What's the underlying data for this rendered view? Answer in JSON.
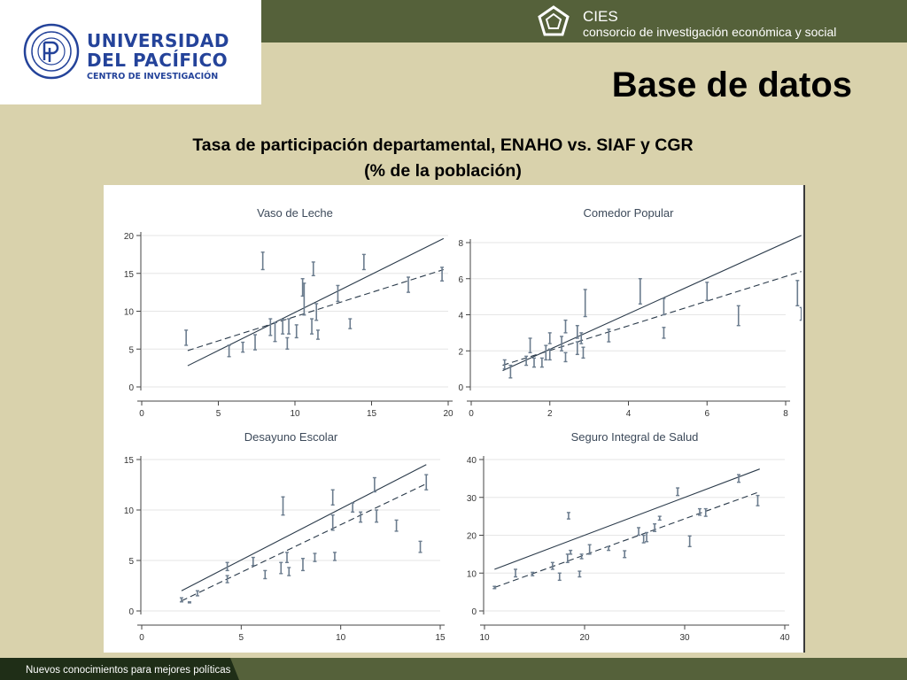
{
  "logo": {
    "line1": "UNIVERSIDAD",
    "line2": "DEL PACÍFICO",
    "line3": "CENTRO DE INVESTIGACIÓN",
    "color": "#24439a"
  },
  "header": {
    "cies_title": "CIES",
    "cies_subtitle": "consorcio de investigación económica y social",
    "bar_color": "#55613a"
  },
  "slide": {
    "title": "Base de datos",
    "subtitle_line1": "Tasa de participación departamental, ENAHO vs. SIAF y CGR",
    "subtitle_line2": "(% de la población)"
  },
  "footer": {
    "text": "Nuevos conocimientos para mejores políticas"
  },
  "chart_data": [
    {
      "type": "scatter",
      "title": "Vaso de Leche",
      "xlim": [
        0,
        20
      ],
      "ylim": [
        0,
        20
      ],
      "xticks": [
        0,
        5,
        10,
        15,
        20
      ],
      "yticks": [
        0,
        5,
        10,
        15,
        20
      ],
      "solid_line": [
        [
          3,
          2.8
        ],
        [
          19.7,
          19.6
        ]
      ],
      "dashed_line": [
        [
          3,
          4.8
        ],
        [
          19.7,
          15.5
        ]
      ],
      "segments": [
        {
          "x": 2.9,
          "y1": 5.5,
          "y2": 7.5
        },
        {
          "x": 5.7,
          "y1": 4.0,
          "y2": 5.5
        },
        {
          "x": 6.6,
          "y1": 4.6,
          "y2": 5.9
        },
        {
          "x": 7.4,
          "y1": 4.9,
          "y2": 6.9
        },
        {
          "x": 7.9,
          "y1": 15.5,
          "y2": 17.8
        },
        {
          "x": 8.4,
          "y1": 6.8,
          "y2": 9.0
        },
        {
          "x": 8.7,
          "y1": 6.0,
          "y2": 8.5
        },
        {
          "x": 9.2,
          "y1": 7.0,
          "y2": 8.9
        },
        {
          "x": 9.5,
          "y1": 5.0,
          "y2": 6.5
        },
        {
          "x": 9.6,
          "y1": 7.0,
          "y2": 9.0
        },
        {
          "x": 10.1,
          "y1": 6.5,
          "y2": 8.2
        },
        {
          "x": 10.5,
          "y1": 12.0,
          "y2": 14.3
        },
        {
          "x": 10.6,
          "y1": 9.5,
          "y2": 13.7
        },
        {
          "x": 11.1,
          "y1": 7.0,
          "y2": 9.0
        },
        {
          "x": 11.2,
          "y1": 14.7,
          "y2": 16.5
        },
        {
          "x": 11.4,
          "y1": 8.8,
          "y2": 11.0
        },
        {
          "x": 11.5,
          "y1": 6.3,
          "y2": 7.5
        },
        {
          "x": 12.8,
          "y1": 11.3,
          "y2": 13.4
        },
        {
          "x": 13.6,
          "y1": 7.7,
          "y2": 9.0
        },
        {
          "x": 14.5,
          "y1": 15.5,
          "y2": 17.5
        },
        {
          "x": 17.4,
          "y1": 12.5,
          "y2": 14.5
        },
        {
          "x": 19.6,
          "y1": 14.0,
          "y2": 15.8
        }
      ]
    },
    {
      "type": "scatter",
      "title": "Comedor Popular",
      "xlim": [
        0,
        8
      ],
      "ylim": [
        0,
        8
      ],
      "xticks": [
        0,
        2,
        4,
        6,
        8
      ],
      "yticks": [
        0,
        2,
        4,
        6,
        8
      ],
      "solid_line": [
        [
          0.8,
          0.9
        ],
        [
          8.4,
          8.4
        ]
      ],
      "dashed_line": [
        [
          0.8,
          1.2
        ],
        [
          8.4,
          6.4
        ]
      ],
      "segments": [
        {
          "x": 0.85,
          "y1": 1.0,
          "y2": 1.5
        },
        {
          "x": 1.0,
          "y1": 0.5,
          "y2": 1.2
        },
        {
          "x": 1.4,
          "y1": 1.2,
          "y2": 1.7
        },
        {
          "x": 1.5,
          "y1": 1.9,
          "y2": 2.7
        },
        {
          "x": 1.6,
          "y1": 1.1,
          "y2": 1.6
        },
        {
          "x": 1.8,
          "y1": 1.1,
          "y2": 1.6
        },
        {
          "x": 1.9,
          "y1": 1.5,
          "y2": 2.3
        },
        {
          "x": 2.0,
          "y1": 1.5,
          "y2": 2.1
        },
        {
          "x": 2.0,
          "y1": 2.4,
          "y2": 3.0
        },
        {
          "x": 2.3,
          "y1": 2.0,
          "y2": 2.8
        },
        {
          "x": 2.4,
          "y1": 1.4,
          "y2": 1.9
        },
        {
          "x": 2.4,
          "y1": 3.0,
          "y2": 3.7
        },
        {
          "x": 2.7,
          "y1": 1.8,
          "y2": 2.5
        },
        {
          "x": 2.7,
          "y1": 2.7,
          "y2": 3.4
        },
        {
          "x": 2.8,
          "y1": 2.4,
          "y2": 3.0
        },
        {
          "x": 2.85,
          "y1": 1.6,
          "y2": 2.2
        },
        {
          "x": 2.9,
          "y1": 3.9,
          "y2": 5.4
        },
        {
          "x": 3.5,
          "y1": 2.5,
          "y2": 3.2
        },
        {
          "x": 4.3,
          "y1": 4.6,
          "y2": 6.0
        },
        {
          "x": 4.9,
          "y1": 2.7,
          "y2": 3.3
        },
        {
          "x": 4.9,
          "y1": 4.0,
          "y2": 4.9
        },
        {
          "x": 6.0,
          "y1": 4.8,
          "y2": 5.8
        },
        {
          "x": 6.8,
          "y1": 3.4,
          "y2": 4.5
        },
        {
          "x": 8.3,
          "y1": 4.5,
          "y2": 5.9
        },
        {
          "x": 8.4,
          "y1": 3.7,
          "y2": 4.4
        }
      ]
    },
    {
      "type": "scatter",
      "title": "Desayuno Escolar",
      "xlim": [
        0,
        15
      ],
      "ylim": [
        0,
        15
      ],
      "xticks": [
        0,
        5,
        10,
        15
      ],
      "yticks": [
        0,
        5,
        10,
        15
      ],
      "solid_line": [
        [
          2.0,
          2.0
        ],
        [
          14.3,
          14.5
        ]
      ],
      "dashed_line": [
        [
          2.0,
          1.0
        ],
        [
          14.3,
          12.6
        ]
      ],
      "segments": [
        {
          "x": 2.0,
          "y1": 0.9,
          "y2": 1.3
        },
        {
          "x": 2.4,
          "y1": 0.8,
          "y2": 0.9
        },
        {
          "x": 2.8,
          "y1": 1.5,
          "y2": 2.0
        },
        {
          "x": 4.3,
          "y1": 2.8,
          "y2": 3.5
        },
        {
          "x": 4.3,
          "y1": 4.0,
          "y2": 4.8
        },
        {
          "x": 5.6,
          "y1": 4.5,
          "y2": 5.3
        },
        {
          "x": 6.2,
          "y1": 3.2,
          "y2": 4.0
        },
        {
          "x": 7.0,
          "y1": 3.7,
          "y2": 4.8
        },
        {
          "x": 7.1,
          "y1": 9.5,
          "y2": 11.3
        },
        {
          "x": 7.3,
          "y1": 4.8,
          "y2": 5.8
        },
        {
          "x": 7.4,
          "y1": 3.5,
          "y2": 4.3
        },
        {
          "x": 8.1,
          "y1": 4.0,
          "y2": 5.2
        },
        {
          "x": 8.7,
          "y1": 4.9,
          "y2": 5.7
        },
        {
          "x": 9.6,
          "y1": 8.0,
          "y2": 9.5
        },
        {
          "x": 9.6,
          "y1": 10.5,
          "y2": 12.0
        },
        {
          "x": 9.7,
          "y1": 5.0,
          "y2": 5.8
        },
        {
          "x": 10.6,
          "y1": 9.8,
          "y2": 10.7
        },
        {
          "x": 11.0,
          "y1": 8.8,
          "y2": 9.8
        },
        {
          "x": 11.7,
          "y1": 11.8,
          "y2": 13.2
        },
        {
          "x": 11.8,
          "y1": 8.8,
          "y2": 10.0
        },
        {
          "x": 12.8,
          "y1": 7.9,
          "y2": 9.0
        },
        {
          "x": 14.0,
          "y1": 5.8,
          "y2": 6.9
        },
        {
          "x": 14.3,
          "y1": 12.0,
          "y2": 13.5
        }
      ]
    },
    {
      "type": "scatter",
      "title": "Seguro Integral de Salud",
      "xlim": [
        10,
        40
      ],
      "ylim": [
        0,
        40
      ],
      "xticks": [
        10,
        20,
        30,
        40
      ],
      "yticks": [
        0,
        10,
        20,
        30,
        40
      ],
      "solid_line": [
        [
          11,
          11
        ],
        [
          37.5,
          37.5
        ]
      ],
      "dashed_line": [
        [
          11,
          6.2
        ],
        [
          37.5,
          31.5
        ]
      ],
      "segments": [
        {
          "x": 11.0,
          "y1": 5.9,
          "y2": 6.5
        },
        {
          "x": 13.1,
          "y1": 9.0,
          "y2": 11.0
        },
        {
          "x": 14.8,
          "y1": 9.3,
          "y2": 10.2
        },
        {
          "x": 16.8,
          "y1": 11.0,
          "y2": 12.8
        },
        {
          "x": 17.5,
          "y1": 8.1,
          "y2": 10.0
        },
        {
          "x": 18.3,
          "y1": 12.8,
          "y2": 15.0
        },
        {
          "x": 18.4,
          "y1": 24.3,
          "y2": 26.0
        },
        {
          "x": 18.6,
          "y1": 15.0,
          "y2": 16.0
        },
        {
          "x": 19.5,
          "y1": 9.0,
          "y2": 10.5
        },
        {
          "x": 19.7,
          "y1": 13.8,
          "y2": 15.0
        },
        {
          "x": 20.5,
          "y1": 15.0,
          "y2": 17.5
        },
        {
          "x": 22.4,
          "y1": 16.0,
          "y2": 17.0
        },
        {
          "x": 24.0,
          "y1": 14.1,
          "y2": 15.9
        },
        {
          "x": 25.4,
          "y1": 20.0,
          "y2": 22.0
        },
        {
          "x": 25.9,
          "y1": 18.0,
          "y2": 20.0
        },
        {
          "x": 26.2,
          "y1": 18.3,
          "y2": 20.7
        },
        {
          "x": 27.0,
          "y1": 21.0,
          "y2": 23.0
        },
        {
          "x": 27.5,
          "y1": 24.0,
          "y2": 25.0
        },
        {
          "x": 29.3,
          "y1": 30.5,
          "y2": 32.5
        },
        {
          "x": 30.5,
          "y1": 17.0,
          "y2": 19.8
        },
        {
          "x": 31.5,
          "y1": 25.3,
          "y2": 27.0
        },
        {
          "x": 32.1,
          "y1": 25.0,
          "y2": 27.0
        },
        {
          "x": 35.4,
          "y1": 34.0,
          "y2": 36.0
        },
        {
          "x": 37.3,
          "y1": 27.8,
          "y2": 30.5
        }
      ]
    }
  ]
}
